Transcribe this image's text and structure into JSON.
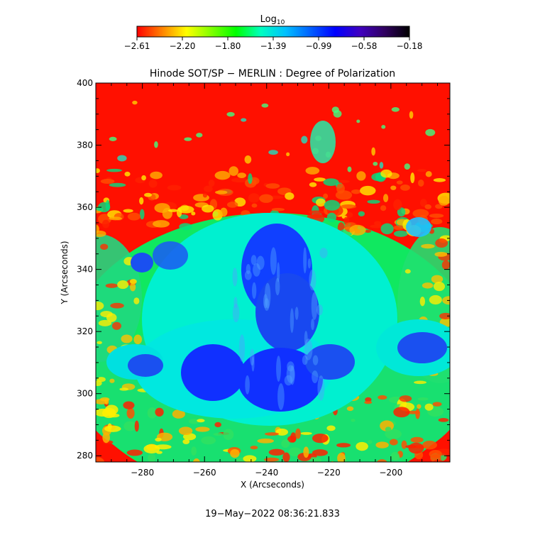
{
  "colorbar": {
    "label_main": "Log",
    "label_sub": "10",
    "ticks": [
      "−2.61",
      "−2.20",
      "−1.80",
      "−1.39",
      "−0.99",
      "−0.58",
      "−0.18"
    ],
    "range": [
      -2.61,
      -0.18
    ],
    "colors": [
      "#ff0000",
      "#ff8000",
      "#ffff00",
      "#80ff00",
      "#00ff00",
      "#00ffc0",
      "#00c0ff",
      "#0060ff",
      "#0000ff",
      "#4000c0",
      "#300060",
      "#000000"
    ]
  },
  "chart_data": {
    "type": "heatmap",
    "title": "Hinode SOT/SP − MERLIN : Degree of Polarization",
    "xlabel": "X (Arcseconds)",
    "ylabel": "Y (Arcseconds)",
    "xlim": [
      -295,
      -181
    ],
    "ylim": [
      278,
      400
    ],
    "xticks": [
      -280,
      -260,
      -240,
      -220,
      -200
    ],
    "yticks": [
      280,
      300,
      320,
      340,
      360,
      380,
      400
    ],
    "xtick_labels": [
      "−280",
      "−260",
      "−240",
      "−220",
      "−200"
    ],
    "ytick_labels": [
      "280",
      "300",
      "320",
      "340",
      "360",
      "380",
      "400"
    ],
    "value_range": [
      -2.61,
      -0.18
    ],
    "grid": false
  },
  "footer": {
    "timestamp": "19−May−2022 08:36:21.833"
  }
}
